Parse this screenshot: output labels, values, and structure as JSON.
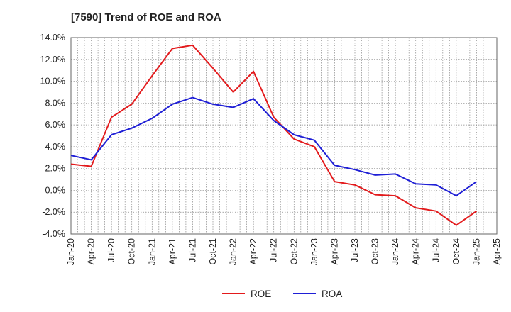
{
  "chart_data": {
    "type": "line",
    "title": "[7590]  Trend of ROE and ROA",
    "xlabel": "",
    "ylabel": "",
    "x": [
      "Jan-20",
      "Apr-20",
      "Jul-20",
      "Oct-20",
      "Jan-21",
      "Apr-21",
      "Jul-21",
      "Oct-21",
      "Jan-22",
      "Apr-22",
      "Jul-22",
      "Oct-22",
      "Jan-23",
      "Apr-23",
      "Jul-23",
      "Oct-23",
      "Jan-24",
      "Apr-24",
      "Jul-24",
      "Oct-24",
      "Jan-25",
      "Apr-25"
    ],
    "ylim": [
      -4.0,
      14.0
    ],
    "yticks": [
      "-4.0%",
      "-2.0%",
      "0.0%",
      "2.0%",
      "4.0%",
      "6.0%",
      "8.0%",
      "10.0%",
      "12.0%",
      "14.0%"
    ],
    "ytick_values": [
      -4,
      -2,
      0,
      2,
      4,
      6,
      8,
      10,
      12,
      14
    ],
    "grid": true,
    "legend_position": "bottom",
    "series": [
      {
        "name": "ROE",
        "color": "#e31a1c",
        "values": [
          2.4,
          2.2,
          6.7,
          7.9,
          10.5,
          13.0,
          13.3,
          11.2,
          9.0,
          10.9,
          6.7,
          4.7,
          4.0,
          0.8,
          0.5,
          -0.4,
          -0.5,
          -1.6,
          -1.9,
          -3.2,
          -1.9,
          null
        ]
      },
      {
        "name": "ROA",
        "color": "#1f1fd6",
        "values": [
          3.2,
          2.8,
          5.1,
          5.7,
          6.6,
          7.9,
          8.5,
          7.9,
          7.6,
          8.4,
          6.4,
          5.1,
          4.6,
          2.3,
          1.9,
          1.4,
          1.5,
          0.6,
          0.5,
          -0.5,
          0.8,
          null
        ]
      }
    ]
  }
}
